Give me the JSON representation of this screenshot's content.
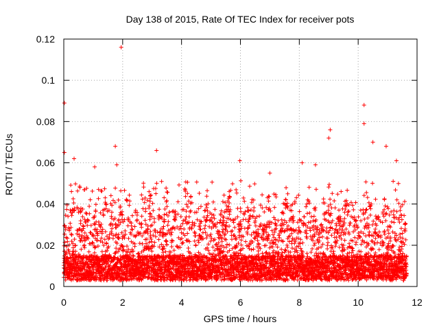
{
  "chart_data": {
    "type": "scatter",
    "title": "Day 138 of 2015, Rate Of TEC Index for receiver pots",
    "xlabel": "GPS time / hours",
    "ylabel": "ROTI / TECUs",
    "xlim": [
      0,
      12
    ],
    "ylim": [
      0,
      0.12
    ],
    "xticks": [
      "0",
      "2",
      "4",
      "6",
      "8",
      "10",
      "12"
    ],
    "yticks": [
      "0",
      "0.02",
      "0.04",
      "0.06",
      "0.08",
      "0.1",
      "0.12"
    ],
    "grid": true,
    "marker": "+",
    "colors": {
      "marker": "#ff0000",
      "grid": "#a0a0a0",
      "frame": "#000000"
    },
    "series": [
      {
        "name": "ROTI",
        "x_range": [
          0,
          11.65
        ],
        "typical_range": [
          0.003,
          0.045
        ],
        "notable_points": [
          {
            "x": 1.95,
            "y": 0.116
          },
          {
            "x": 10.2,
            "y": 0.088
          },
          {
            "x": 0.02,
            "y": 0.089
          },
          {
            "x": 10.2,
            "y": 0.079
          },
          {
            "x": 9.05,
            "y": 0.076
          },
          {
            "x": 9.0,
            "y": 0.072
          },
          {
            "x": 10.5,
            "y": 0.07
          },
          {
            "x": 1.75,
            "y": 0.068
          },
          {
            "x": 10.95,
            "y": 0.068
          },
          {
            "x": 3.15,
            "y": 0.066
          },
          {
            "x": 0.02,
            "y": 0.065
          },
          {
            "x": 0.35,
            "y": 0.062
          },
          {
            "x": 5.98,
            "y": 0.061
          },
          {
            "x": 8.1,
            "y": 0.06
          },
          {
            "x": 11.3,
            "y": 0.061
          },
          {
            "x": 1.8,
            "y": 0.059
          },
          {
            "x": 1.05,
            "y": 0.058
          },
          {
            "x": 8.55,
            "y": 0.059
          },
          {
            "x": 0.55,
            "y": 0.048
          },
          {
            "x": 7.0,
            "y": 0.055
          }
        ]
      }
    ]
  }
}
